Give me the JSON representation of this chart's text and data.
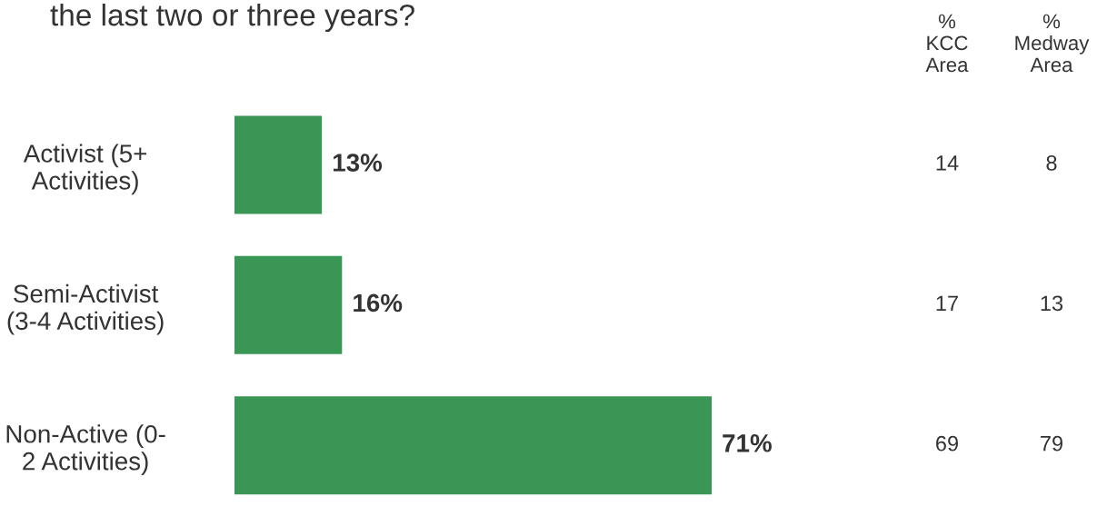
{
  "chart_data": {
    "type": "bar",
    "orientation": "horizontal",
    "title": "the last two or three years?",
    "categories": [
      "Activist (5+\nActivities)",
      "Semi-Activist\n(3-4 Activities)",
      "Non-Active (0-\n2 Activities)"
    ],
    "values": [
      13,
      16,
      71
    ],
    "value_labels": [
      "13%",
      "16%",
      "71%"
    ],
    "color": "#3a9655",
    "annotations": [
      "%\nKCC\nArea",
      "%\nMedway\nArea",
      "14",
      "8",
      "17",
      "13",
      "69",
      "79"
    ]
  }
}
